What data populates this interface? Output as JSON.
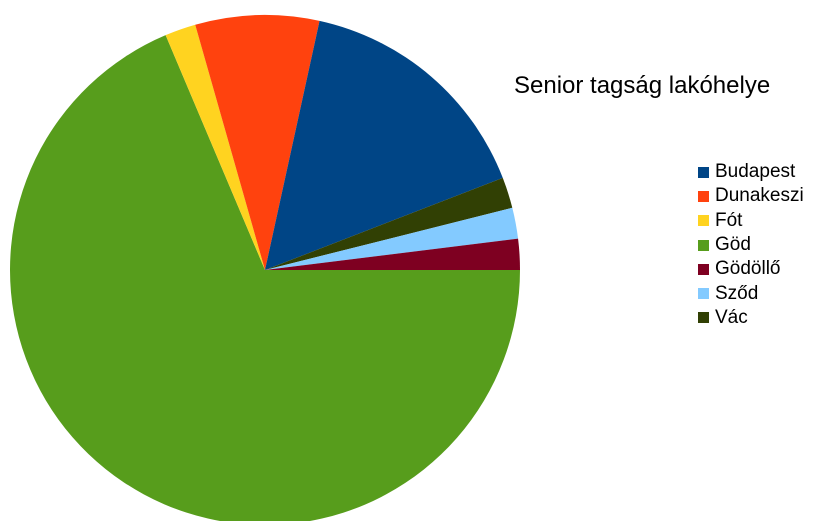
{
  "chart_data": {
    "type": "pie",
    "title": "Senior tagság lakóhelye",
    "start_angle_deg": 0,
    "direction": "clockwise",
    "legend_position": "right",
    "slices": [
      {
        "label": "Göd",
        "value": 70,
        "color": "#579D1C"
      },
      {
        "label": "Fót",
        "value": 2,
        "color": "#FFD320"
      },
      {
        "label": "Dunakeszi",
        "value": 8,
        "color": "#FF420E"
      },
      {
        "label": "Budapest",
        "value": 16,
        "color": "#004586"
      },
      {
        "label": "Vác",
        "value": 2,
        "color": "#314004"
      },
      {
        "label": "Sződ",
        "value": 2,
        "color": "#83CAFF"
      },
      {
        "label": "Gödöllő",
        "value": 2,
        "color": "#7E0021"
      }
    ],
    "legend": [
      {
        "label": "Budapest",
        "color": "#004586"
      },
      {
        "label": "Dunakeszi",
        "color": "#FF420E"
      },
      {
        "label": "Fót",
        "color": "#FFD320"
      },
      {
        "label": "Göd",
        "color": "#579D1C"
      },
      {
        "label": "Gödöllő",
        "color": "#7E0021"
      },
      {
        "label": "Sződ",
        "color": "#83CAFF"
      },
      {
        "label": "Vác",
        "color": "#314004"
      }
    ]
  }
}
